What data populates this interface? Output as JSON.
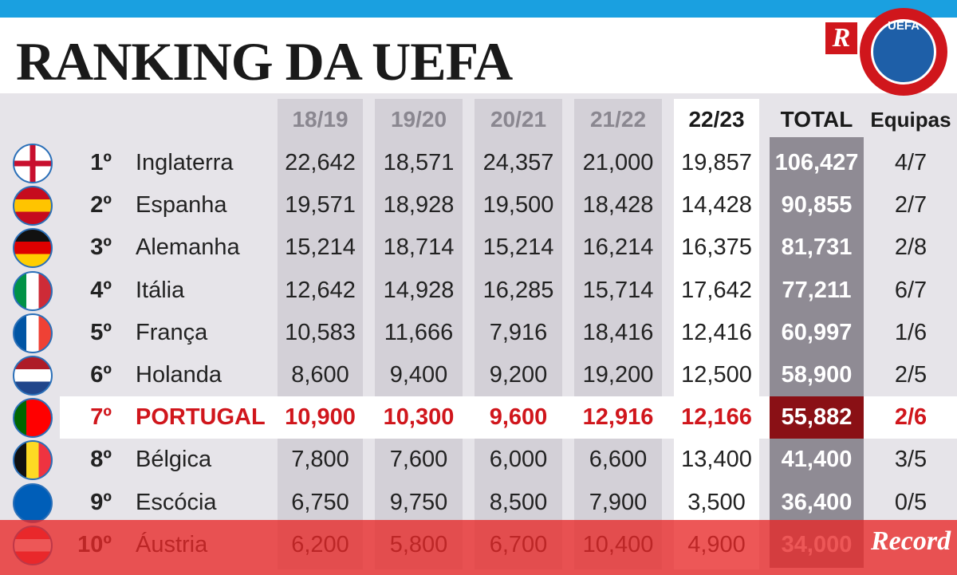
{
  "header": {
    "title": "RANKING DA UEFA",
    "logo_r": "R",
    "logo_uefa": "UEFA"
  },
  "table": {
    "columns": [
      "18/19",
      "19/20",
      "20/21",
      "21/22",
      "22/23",
      "TOTAL",
      "Equipas"
    ],
    "rows": [
      {
        "rank": "1º",
        "country": "Inglaterra",
        "values": [
          "22,642",
          "18,571",
          "24,357",
          "21,000",
          "19,857"
        ],
        "total": "106,427",
        "teams": "4/7"
      },
      {
        "rank": "2º",
        "country": "Espanha",
        "values": [
          "19,571",
          "18,928",
          "19,500",
          "18,428",
          "14,428"
        ],
        "total": "90,855",
        "teams": "2/7"
      },
      {
        "rank": "3º",
        "country": "Alemanha",
        "values": [
          "15,214",
          "18,714",
          "15,214",
          "16,214",
          "16,375"
        ],
        "total": "81,731",
        "teams": "2/8"
      },
      {
        "rank": "4º",
        "country": "Itália",
        "values": [
          "12,642",
          "14,928",
          "16,285",
          "15,714",
          "17,642"
        ],
        "total": "77,211",
        "teams": "6/7"
      },
      {
        "rank": "5º",
        "country": "França",
        "values": [
          "10,583",
          "11,666",
          "7,916",
          "18,416",
          "12,416"
        ],
        "total": "60,997",
        "teams": "1/6"
      },
      {
        "rank": "6º",
        "country": "Holanda",
        "values": [
          "8,600",
          "9,400",
          "9,200",
          "19,200",
          "12,500"
        ],
        "total": "58,900",
        "teams": "2/5"
      },
      {
        "rank": "7º",
        "country": "PORTUGAL",
        "values": [
          "10,900",
          "10,300",
          "9,600",
          "12,916",
          "12,166"
        ],
        "total": "55,882",
        "teams": "2/6"
      },
      {
        "rank": "8º",
        "country": "Bélgica",
        "values": [
          "7,800",
          "7,600",
          "6,000",
          "6,600",
          "13,400"
        ],
        "total": "41,400",
        "teams": "3/5"
      },
      {
        "rank": "9º",
        "country": "Escócia",
        "values": [
          "6,750",
          "9,750",
          "8,500",
          "7,900",
          "3,500"
        ],
        "total": "36,400",
        "teams": "0/5"
      },
      {
        "rank": "10º",
        "country": "Áustria",
        "values": [
          "6,200",
          "5,800",
          "6,700",
          "10,400",
          "4,900"
        ],
        "total": "34,000"
      }
    ]
  },
  "watermark": "Record"
}
